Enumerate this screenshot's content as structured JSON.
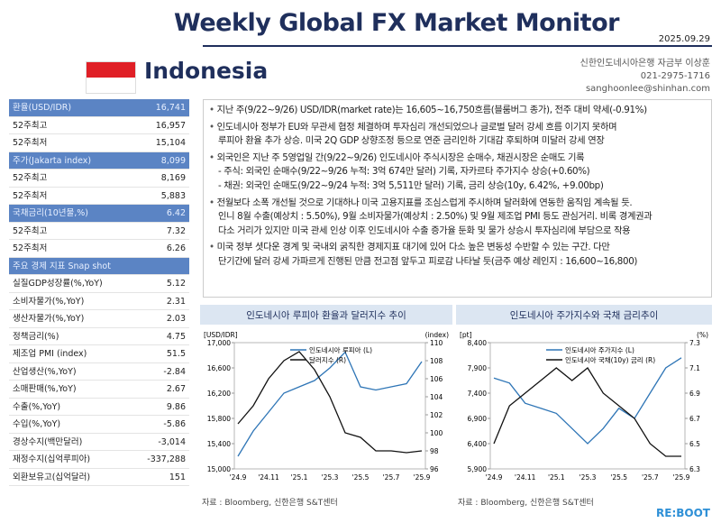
{
  "header": {
    "title": "Weekly Global FX Market Monitor",
    "date": "2025.09.29",
    "country": "Indonesia",
    "contact": [
      "신한인도네시아은행 자금부 이상훈",
      "021-2975-1716",
      "sanghoonlee@shinhan.com"
    ]
  },
  "sidebar": [
    {
      "name": "환율(USD/IDR)",
      "value": "16,741",
      "rows": [
        {
          "label": "52주최고",
          "value": "16,957"
        },
        {
          "label": "52주최저",
          "value": "15,104"
        }
      ]
    },
    {
      "name": "주가(Jakarta index)",
      "value": "8,099",
      "rows": [
        {
          "label": "52주최고",
          "value": "8,169"
        },
        {
          "label": "52주최저",
          "value": "5,883"
        }
      ]
    },
    {
      "name": "국채금리(10년물,%)",
      "value": "6.42",
      "rows": [
        {
          "label": "52주최고",
          "value": "7.32"
        },
        {
          "label": "52주최저",
          "value": "6.26"
        }
      ]
    },
    {
      "name": "주요 경제 지표 Snap shot",
      "rows": [
        {
          "label": "실질GDP성장률(%,YoY)",
          "value": "5.12"
        },
        {
          "label": "소비자물가(%,YoY)",
          "value": "2.31"
        },
        {
          "label": "생산자물가(%,YoY)",
          "value": "2.03"
        },
        {
          "label": "정책금리(%)",
          "value": "4.75"
        },
        {
          "label": "제조업 PMI (index)",
          "value": "51.5"
        },
        {
          "label": "산업생산(%,YoY)",
          "value": "-2.84"
        },
        {
          "label": "소매판매(%,YoY)",
          "value": "2.67"
        },
        {
          "label": "수출(%,YoY)",
          "value": "9.86"
        },
        {
          "label": "수입(%,YoY)",
          "value": "-5.86"
        },
        {
          "label": "경상수지(백만달러)",
          "value": "-3,014"
        },
        {
          "label": "재정수지(십억루피아)",
          "value": "-337,288"
        },
        {
          "label": "외환보유고(십억달러)",
          "value": "151"
        }
      ]
    }
  ],
  "bullets": [
    [
      "지난 주(9/22~9/26) USD/IDR(market rate)는 16,605~16,750흐름(블룸버그 종가), 전주 대비 약세(-0.91%)"
    ],
    [
      "인도네시아 정부가 EU와 무관세 협정 체결하며 투자심리 개선되었으나 글로벌 달러 강세 흐름 이기지 못하며",
      "루피아 환율 추가 상승. 미국 2Q GDP 상향조정 등으로 연준 금리인하 기대감 후퇴하며 미달러 강세 연장"
    ],
    [
      "외국인은 지난 주 5영업일 간(9/22~9/26) 인도네시아 주식시장은 순매수, 채권시장은 순매도 기록",
      "- 주식: 외국인 순매수(9/22~9/26 누적: 3억 674만 달러) 기록, 자카르타 주가지수 상승(+0.60%)",
      "- 채권: 외국인 순매도(9/22~9/24 누적: 3억 5,511만 달러) 기록, 금리 상승(10y, 6.42%, +9.00bp)"
    ],
    [
      "전월보다 소폭 개선될 것으로 기대하나 미국 고용지표를 조심스럽게 주시하며 달러화에 연동한 움직임 계속될 듯.",
      "인니 8월 수출(예상치 : 5.50%), 9월 소비자물가(예상치 : 2.50%) 및 9월 제조업 PMI 등도 관심거리. 비록 경계권과",
      "다소 거리가 있지만 미국 관세 인상 이후 인도네시아 수출 증가율 둔화 및 물가 상승시 투자심리에 부담으로 작용"
    ],
    [
      "미국 정부 셧다운 경계 및 국내외 굵직한 경제지표 대기에 있어 다소 높은 변동성 수반할 수 있는 구간. 다만",
      "단기간에 달러 강세 가파르게 진행된 만큼 전고점 앞두고 피로감 나타날 듯(금주 예상 레인지 : 16,600~16,800)"
    ]
  ],
  "chart_data": [
    {
      "type": "line",
      "title": "인도네시아 루피아 환율과 달러지수 추이",
      "y_label": "[USD/IDR]",
      "y2_label": "(index)",
      "source": "자료 : Bloomberg, 신한은행 S&T센터",
      "categories": [
        "'24.9",
        null,
        "'24.11",
        null,
        "'25.1",
        null,
        "'25.3",
        null,
        "'25.5",
        null,
        "'25.7",
        null,
        "'25.9"
      ],
      "series": [
        {
          "name": "인도네시아 루피아 (L)",
          "color": "#2e75b6",
          "values": [
            15200,
            15600,
            15900,
            16200,
            16300,
            16400,
            16600,
            16850,
            16300,
            16250,
            16300,
            16350,
            16700
          ]
        },
        {
          "name": "달러지수 (R)",
          "color": "#111111",
          "axis": "y2",
          "values": [
            101,
            103,
            106,
            108,
            109,
            107,
            104,
            100,
            99.5,
            98,
            98,
            97.8,
            98
          ]
        }
      ],
      "ylim": [
        15000,
        17000
      ],
      "yticks": [
        {
          "value": 15000,
          "label": "15,000"
        },
        {
          "value": 15400,
          "label": "15,400"
        },
        {
          "value": 15800,
          "label": "15,800"
        },
        {
          "value": 16200,
          "label": "16,200"
        },
        {
          "value": 16600,
          "label": "16,600"
        },
        {
          "value": 17000,
          "label": "17,000"
        }
      ],
      "y2lim": [
        96,
        110
      ],
      "y2ticks": [
        96,
        98,
        100,
        102,
        104,
        106,
        108,
        110
      ]
    },
    {
      "type": "line",
      "title": "인도네시아 주가지수와 국채 금리추이",
      "y_label": "[pt]",
      "y2_label": "(%)",
      "source": "자료 : Bloomberg, 신한은행 S&T센터",
      "categories": [
        "'24.9",
        null,
        "'24.11",
        null,
        "'25.1",
        null,
        "'25.3",
        null,
        "'25.5",
        null,
        "'25.7",
        null,
        "'25.9"
      ],
      "series": [
        {
          "name": "인도네시아 주가지수 (L)",
          "color": "#2e75b6",
          "values": [
            7700,
            7600,
            7200,
            7100,
            7000,
            6700,
            6400,
            6700,
            7100,
            6900,
            7400,
            7900,
            8100
          ]
        },
        {
          "name": "인도네시아 국채(10y) 금리 (R)",
          "color": "#111111",
          "axis": "y2",
          "values": [
            6.5,
            6.8,
            6.9,
            7.0,
            7.1,
            7.0,
            7.1,
            6.9,
            6.8,
            6.7,
            6.5,
            6.4,
            6.4
          ]
        }
      ],
      "ylim": [
        5900,
        8400
      ],
      "yticks": [
        {
          "value": 5900,
          "label": "5,900"
        },
        {
          "value": 6400,
          "label": "6,400"
        },
        {
          "value": 6900,
          "label": "6,900"
        },
        {
          "value": 7400,
          "label": "7,400"
        },
        {
          "value": 7900,
          "label": "7,900"
        },
        {
          "value": 8400,
          "label": "8,400"
        }
      ],
      "y2lim": [
        6.3,
        7.3
      ],
      "y2ticks": [
        6.3,
        6.5,
        6.7,
        6.9,
        7.1,
        7.3
      ]
    }
  ],
  "footer": {
    "logo": "RE:BOOT"
  }
}
